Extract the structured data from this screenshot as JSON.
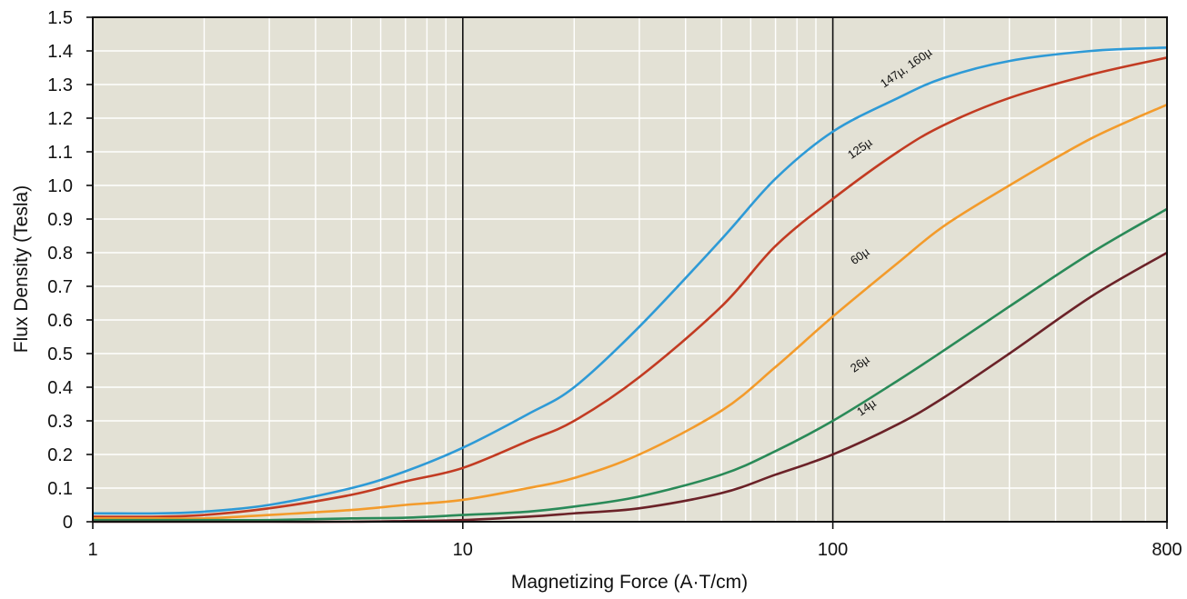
{
  "chart_data": {
    "type": "line",
    "title": "",
    "xlabel": "Magnetizing Force (A·T/cm)",
    "ylabel": "Flux Density (Tesla)",
    "xscale": "log",
    "xlim": [
      1,
      800
    ],
    "ylim": [
      0,
      1.5
    ],
    "x_ticks": [
      1,
      10,
      100,
      800
    ],
    "x_tick_labels": [
      "1",
      "10",
      "100",
      "800"
    ],
    "y_ticks": [
      0,
      0.1,
      0.2,
      0.3,
      0.4,
      0.5,
      0.6,
      0.7,
      0.8,
      0.9,
      1.0,
      1.1,
      1.2,
      1.3,
      1.4,
      1.5
    ],
    "y_tick_labels": [
      "0",
      "0.1",
      "0.2",
      "0.3",
      "0.4",
      "0.5",
      "0.6",
      "0.7",
      "0.8",
      "0.9",
      "1.0",
      "1.1",
      "1.2",
      "1.3",
      "1.4",
      "1.5"
    ],
    "grid": true,
    "plot_background": "#e3e1d5",
    "series": [
      {
        "name": "147µ, 160µ",
        "color": "#2e9ad6",
        "x": [
          1,
          1.5,
          2,
          3,
          5,
          7,
          10,
          15,
          20,
          30,
          50,
          70,
          100,
          150,
          200,
          300,
          500,
          800
        ],
        "y": [
          0.025,
          0.025,
          0.03,
          0.05,
          0.1,
          0.15,
          0.22,
          0.32,
          0.4,
          0.58,
          0.84,
          1.02,
          1.16,
          1.26,
          1.32,
          1.37,
          1.4,
          1.41
        ]
      },
      {
        "name": "125µ",
        "color": "#c23b22",
        "x": [
          1,
          1.5,
          2,
          3,
          5,
          7,
          10,
          15,
          20,
          30,
          50,
          70,
          100,
          150,
          200,
          300,
          500,
          800
        ],
        "y": [
          0.015,
          0.015,
          0.02,
          0.04,
          0.08,
          0.12,
          0.16,
          0.24,
          0.3,
          0.43,
          0.64,
          0.82,
          0.96,
          1.1,
          1.18,
          1.26,
          1.33,
          1.38
        ]
      },
      {
        "name": "60µ",
        "color": "#f39b2b",
        "x": [
          1,
          1.5,
          2,
          3,
          5,
          7,
          10,
          15,
          20,
          30,
          50,
          70,
          100,
          150,
          200,
          300,
          500,
          800
        ],
        "y": [
          0.01,
          0.01,
          0.01,
          0.02,
          0.035,
          0.05,
          0.065,
          0.1,
          0.13,
          0.2,
          0.33,
          0.46,
          0.61,
          0.77,
          0.88,
          1.0,
          1.14,
          1.24
        ]
      },
      {
        "name": "26µ",
        "color": "#2a8a58",
        "x": [
          1,
          1.5,
          2,
          3,
          5,
          7,
          10,
          15,
          20,
          30,
          50,
          70,
          100,
          150,
          200,
          300,
          500,
          800
        ],
        "y": [
          0.005,
          0.005,
          0.005,
          0.005,
          0.01,
          0.012,
          0.02,
          0.03,
          0.045,
          0.075,
          0.14,
          0.21,
          0.3,
          0.42,
          0.51,
          0.64,
          0.8,
          0.93
        ]
      },
      {
        "name": "14µ",
        "color": "#6b2228",
        "x": [
          1,
          1.5,
          2,
          3,
          5,
          7,
          10,
          15,
          20,
          30,
          50,
          70,
          100,
          150,
          200,
          300,
          500,
          800
        ],
        "y": [
          0,
          0,
          0,
          0,
          0,
          0.002,
          0.005,
          0.015,
          0.025,
          0.04,
          0.085,
          0.14,
          0.2,
          0.29,
          0.37,
          0.5,
          0.67,
          0.8
        ]
      }
    ],
    "annotations": [
      {
        "text": "147µ, 160µ",
        "x": 160,
        "y": 1.34,
        "color": "#111111"
      },
      {
        "text": "125µ",
        "x": 120,
        "y": 1.1,
        "color": "#111111"
      },
      {
        "text": "60µ",
        "x": 120,
        "y": 0.78,
        "color": "#111111"
      },
      {
        "text": "26µ",
        "x": 120,
        "y": 0.46,
        "color": "#111111"
      },
      {
        "text": "14µ",
        "x": 125,
        "y": 0.33,
        "color": "#111111"
      }
    ]
  }
}
